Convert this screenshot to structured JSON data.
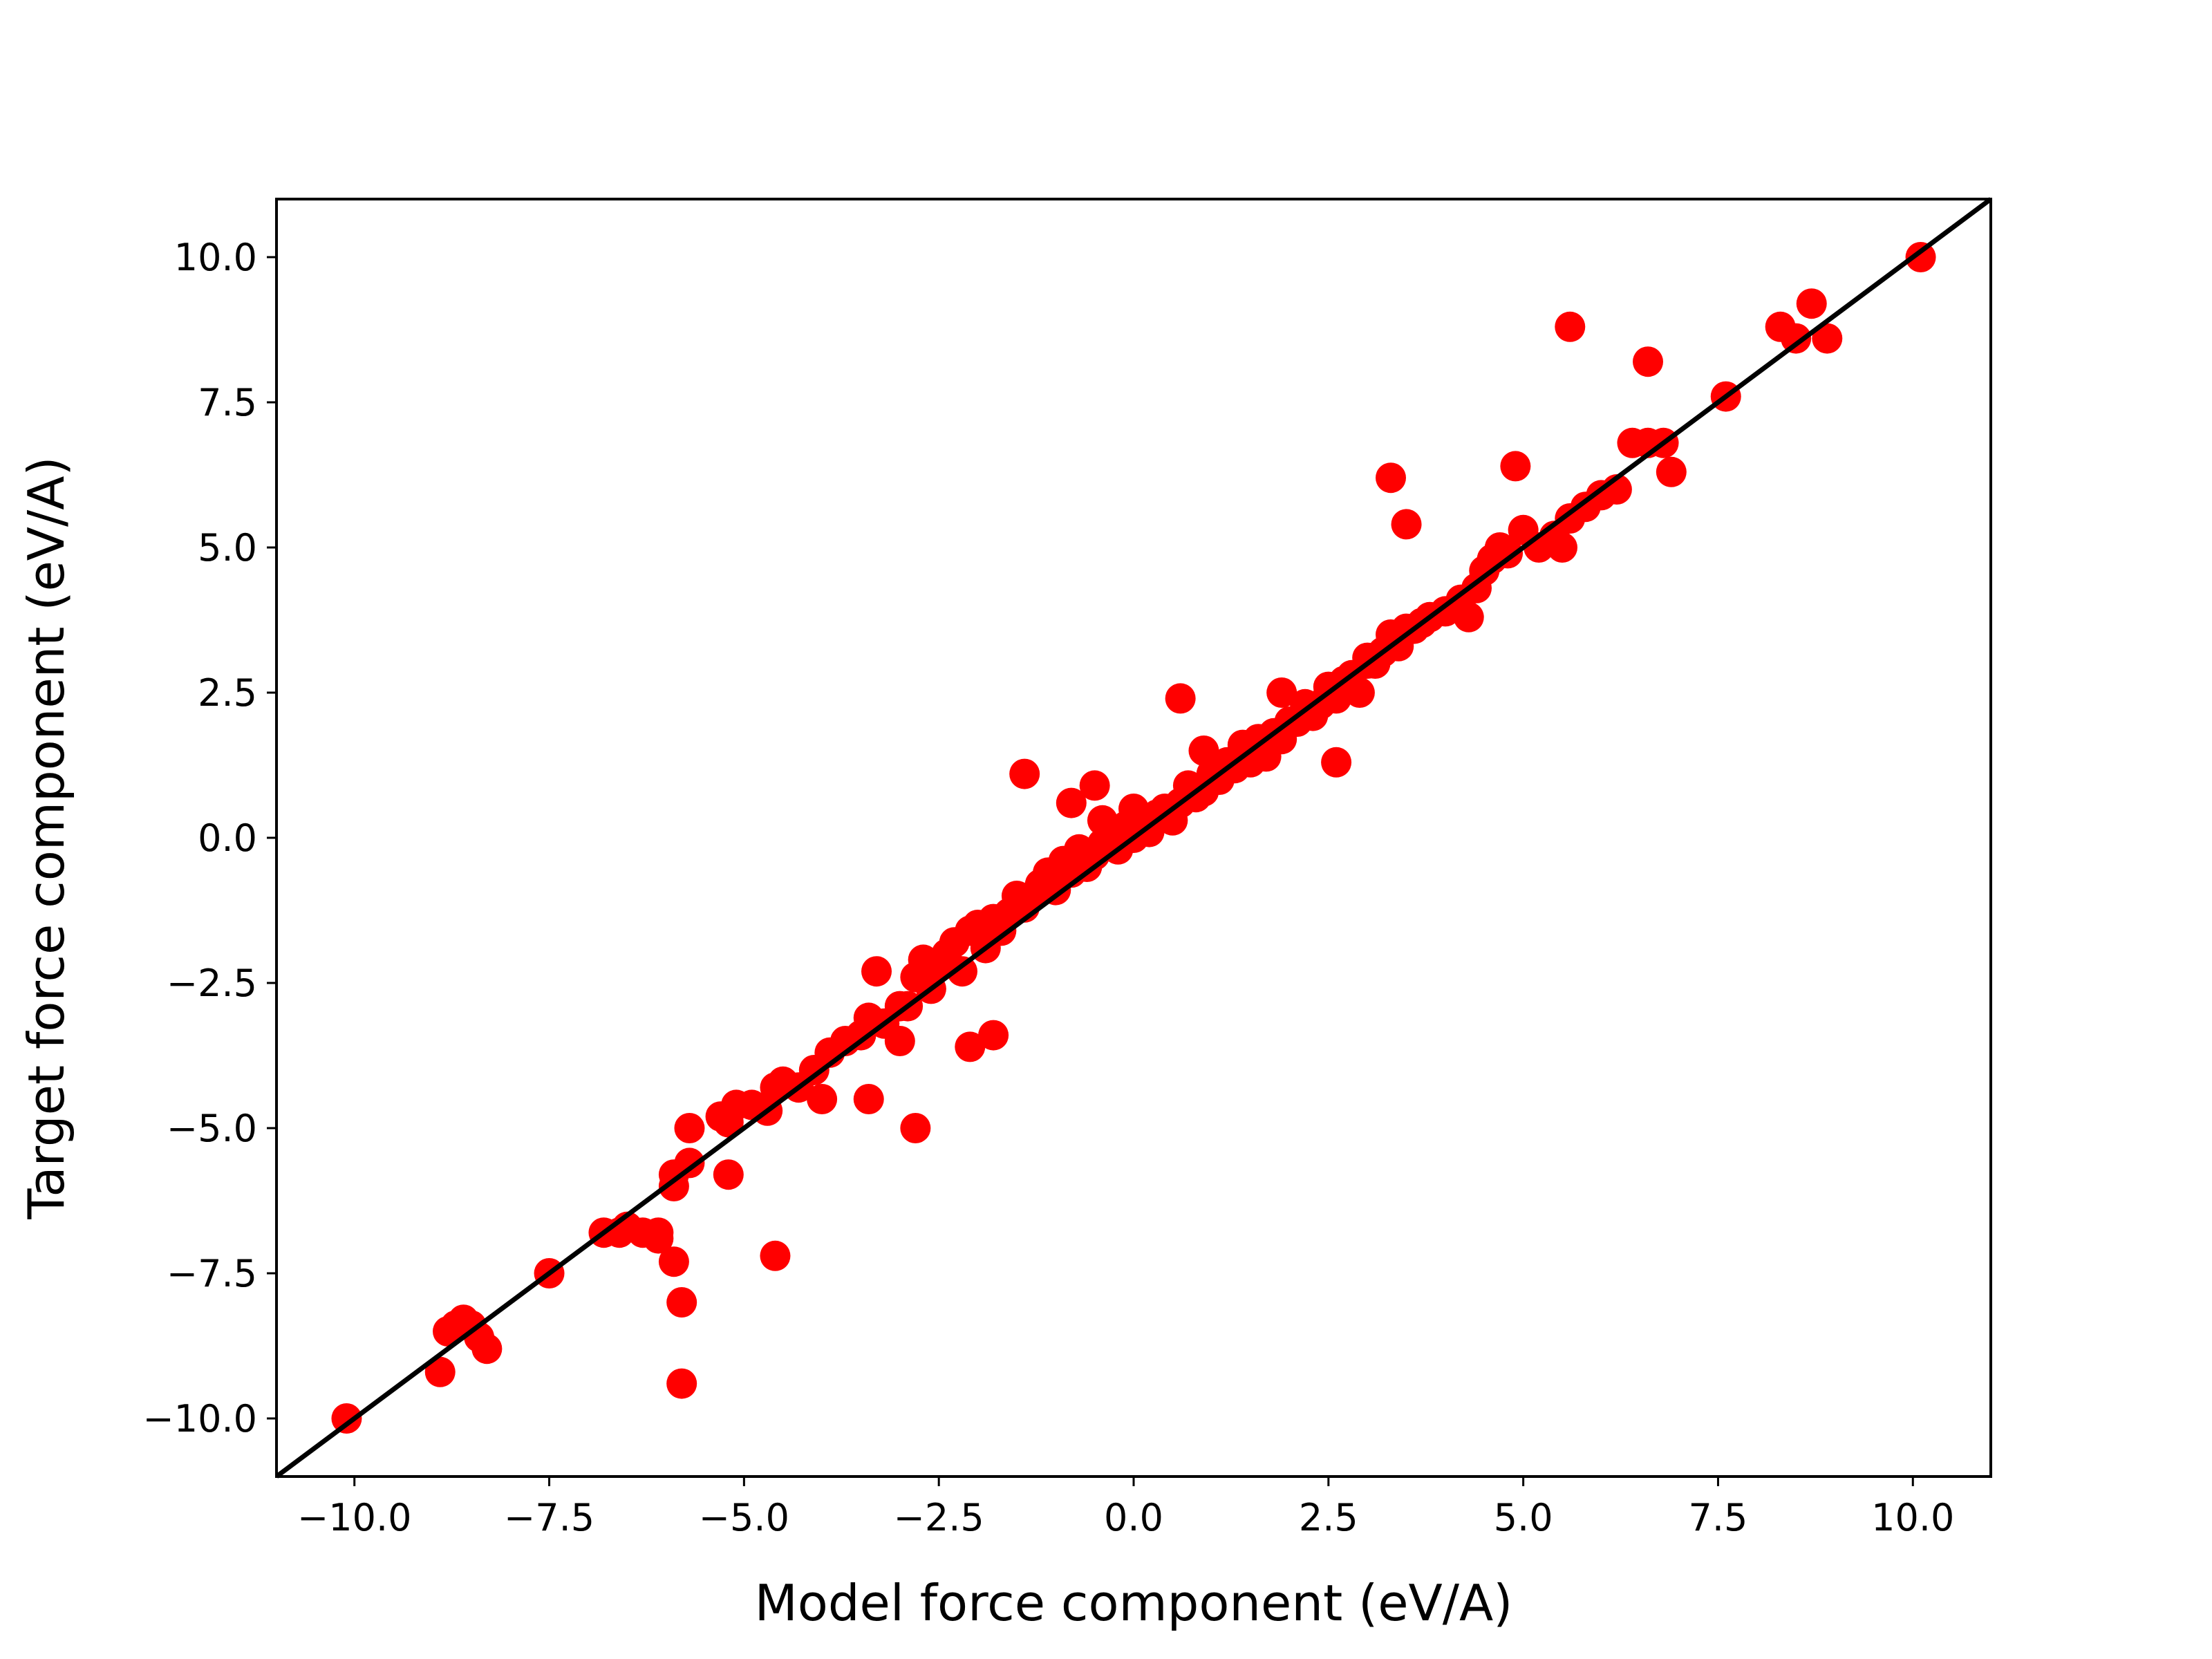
{
  "chart_data": {
    "type": "scatter",
    "title": "",
    "xlabel": "Model force component (eV/A)",
    "ylabel": "Target force component (eV/A)",
    "xlim": [
      -11.0,
      11.0
    ],
    "ylim": [
      -11.0,
      11.0
    ],
    "xticks": [
      -10.0,
      -7.5,
      -5.0,
      -2.5,
      0.0,
      2.5,
      5.0,
      7.5,
      10.0
    ],
    "yticks": [
      -10.0,
      -7.5,
      -5.0,
      -2.5,
      0.0,
      2.5,
      5.0,
      7.5,
      10.0
    ],
    "xtick_labels": [
      "−10.0",
      "−7.5",
      "−5.0",
      "−2.5",
      "0.0",
      "2.5",
      "5.0",
      "7.5",
      "10.0"
    ],
    "ytick_labels": [
      "−10.0",
      "−7.5",
      "−5.0",
      "−2.5",
      "0.0",
      "2.5",
      "5.0",
      "7.5",
      "10.0"
    ],
    "grid": false,
    "legend": "none",
    "point_color": "#ff0000",
    "line_color": "#000000",
    "reference_line": {
      "slope": 1,
      "intercept": 0
    },
    "series": [
      {
        "x": [
          -10.1,
          -8.9,
          -8.8,
          -8.7,
          -8.6,
          -8.5,
          -8.4,
          -8.3,
          -7.5,
          -6.8,
          -6.6,
          -6.5,
          -6.3,
          -6.1,
          -5.9,
          -5.8,
          -5.8,
          -5.7,
          -5.7,
          -5.9,
          -5.2,
          -5.3,
          -5.1,
          -4.9,
          -4.7,
          -4.6,
          -4.5,
          -4.3,
          -4.1,
          -3.9,
          -3.7,
          -3.5,
          -3.4,
          -3.3,
          -3.2,
          -3.0,
          -2.9,
          -2.8,
          -2.7,
          -2.6,
          -2.5,
          -2.4,
          -2.3,
          -2.2,
          -2.1,
          -2.0,
          -1.9,
          -1.9,
          -1.8,
          -1.7,
          -1.6,
          -1.5,
          -1.4,
          -1.3,
          -1.2,
          -1.1,
          -1.0,
          -0.9,
          -0.8,
          -0.7,
          -0.6,
          -0.5,
          -0.4,
          -0.3,
          -0.2,
          -0.1,
          0.0,
          0.1,
          0.2,
          0.3,
          0.4,
          0.5,
          0.6,
          0.7,
          0.8,
          0.9,
          1.0,
          1.1,
          1.2,
          1.3,
          1.4,
          1.5,
          1.6,
          1.7,
          1.8,
          1.9,
          2.0,
          2.1,
          2.2,
          2.3,
          2.4,
          2.5,
          2.6,
          2.7,
          2.8,
          2.9,
          3.0,
          3.1,
          3.2,
          3.3,
          3.4,
          3.5,
          3.6,
          3.7,
          3.8,
          4.0,
          4.2,
          4.4,
          4.5,
          4.6,
          4.7,
          4.8,
          5.0,
          5.2,
          5.4,
          5.6,
          5.8,
          6.0,
          6.2,
          6.4,
          6.6,
          6.8,
          7.6,
          8.3,
          8.5,
          8.7,
          8.9,
          10.1,
          -1.4,
          -0.8,
          -0.5,
          0.0,
          0.6,
          1.4,
          2.6,
          3.3,
          3.5,
          4.9,
          5.6,
          6.6,
          6.9,
          -2.8,
          -2.1,
          -1.8,
          -3.4,
          -4.6,
          -5.2,
          -6.1,
          -5.9,
          -4.0,
          -3.0,
          -1.5,
          -0.4,
          0.9,
          1.9,
          3.0,
          4.3,
          5.5
        ],
        "y": [
          -10.0,
          -9.2,
          -8.5,
          -8.4,
          -8.3,
          -8.4,
          -8.6,
          -8.8,
          -7.5,
          -6.8,
          -6.8,
          -6.7,
          -6.8,
          -6.8,
          -7.3,
          -8.0,
          -9.4,
          -5.0,
          -5.6,
          -6.0,
          -4.9,
          -4.8,
          -4.6,
          -4.6,
          -4.7,
          -4.3,
          -4.2,
          -4.3,
          -4.0,
          -3.7,
          -3.5,
          -3.4,
          -3.1,
          -2.3,
          -3.2,
          -2.9,
          -2.9,
          -2.4,
          -2.1,
          -2.6,
          -2.2,
          -2.0,
          -1.8,
          -2.3,
          -1.6,
          -1.5,
          -1.7,
          -1.9,
          -1.4,
          -1.6,
          -1.3,
          -1.2,
          -1.2,
          -1.0,
          -0.8,
          -0.6,
          -0.9,
          -0.4,
          -0.6,
          -0.2,
          -0.5,
          -0.3,
          -0.1,
          0.0,
          -0.2,
          0.2,
          0.0,
          0.2,
          0.1,
          0.4,
          0.5,
          0.3,
          0.6,
          0.9,
          0.7,
          0.8,
          1.1,
          1.0,
          1.3,
          1.2,
          1.5,
          1.3,
          1.7,
          1.4,
          1.8,
          1.7,
          2.0,
          2.0,
          2.3,
          2.1,
          2.3,
          2.6,
          2.4,
          2.7,
          2.8,
          2.5,
          3.1,
          3.0,
          3.2,
          3.5,
          3.3,
          3.6,
          3.6,
          3.7,
          3.8,
          3.9,
          4.1,
          4.3,
          4.6,
          4.8,
          5.0,
          4.9,
          5.3,
          5.0,
          5.2,
          5.5,
          5.7,
          5.9,
          6.0,
          6.8,
          6.8,
          6.8,
          7.6,
          8.8,
          8.6,
          9.2,
          8.6,
          10.0,
          1.1,
          0.6,
          0.9,
          0.5,
          2.4,
          1.6,
          1.3,
          6.2,
          5.4,
          6.4,
          8.8,
          8.2,
          6.3,
          -5.0,
          -3.6,
          -3.4,
          -4.5,
          -7.2,
          -5.8,
          -6.9,
          -5.8,
          -4.5,
          -3.5,
          -1.0,
          0.3,
          1.5,
          2.5,
          3.0,
          3.8,
          5.0
        ]
      }
    ]
  }
}
